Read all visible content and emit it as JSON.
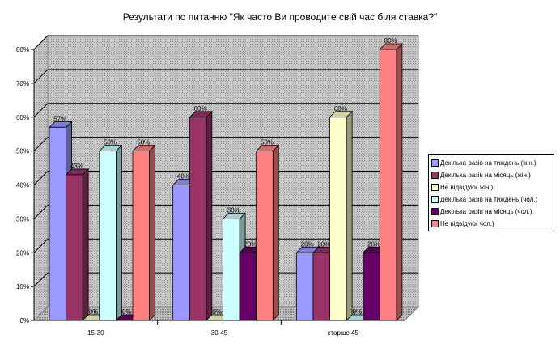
{
  "chart_data": {
    "type": "bar",
    "title": "Результати по питанню \"Як часто Ви проводите свій час біля ставка?\"",
    "categories": [
      "15-30",
      "30-45",
      "старше 45"
    ],
    "ylim": [
      0,
      80
    ],
    "yticks": [
      "0%",
      "10%",
      "20%",
      "30%",
      "40%",
      "50%",
      "60%",
      "70%",
      "80%"
    ],
    "grid": true,
    "legend_position": "right",
    "series": [
      {
        "name": "Декілька разів на тиждень (жін.)",
        "values": [
          57,
          40,
          20
        ],
        "labels": [
          "57%",
          "40%",
          "20%"
        ],
        "color": "#9999ff"
      },
      {
        "name": "Декілька разів на місяць (жін.)",
        "values": [
          43,
          60,
          20
        ],
        "labels": [
          "43%",
          "60%",
          "20%"
        ],
        "color": "#993366"
      },
      {
        "name": "Не відвідую( жін.)",
        "values": [
          0,
          0,
          60
        ],
        "labels": [
          "0%",
          "0%",
          "60%"
        ],
        "color": "#ffffcc"
      },
      {
        "name": "Декілька разів на тиждень (чол.)",
        "values": [
          50,
          30,
          0
        ],
        "labels": [
          "50%",
          "30%",
          "0%"
        ],
        "color": "#ccffff"
      },
      {
        "name": "Декілька разів на місяць (чол.)",
        "values": [
          0,
          20,
          20
        ],
        "labels": [
          "0%",
          "20%",
          "20%"
        ],
        "color": "#660066"
      },
      {
        "name": "Не відвідую( чол.)",
        "values": [
          50,
          50,
          80
        ],
        "labels": [
          "50%",
          "50%",
          "80%"
        ],
        "color": "#ff8080"
      }
    ]
  }
}
